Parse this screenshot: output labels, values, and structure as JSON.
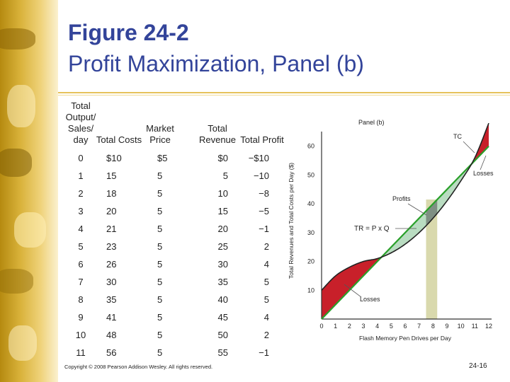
{
  "slide": {
    "title_line1": "Figure 24-2",
    "title_line2": "Profit Maximization, Panel (b)",
    "copyright": "Copyright © 2008 Pearson Addison Wesley. All rights reserved.",
    "page_number": "24-16"
  },
  "table": {
    "headers": [
      "Total Output/ Sales/ day",
      "Total Costs",
      "Market Price",
      "Total Revenue",
      "Total Profit"
    ],
    "rows": [
      [
        "0",
        "$10",
        "$5",
        "$0",
        "−$10"
      ],
      [
        "1",
        "15",
        "5",
        "5",
        "−10"
      ],
      [
        "2",
        "18",
        "5",
        "10",
        "−8"
      ],
      [
        "3",
        "20",
        "5",
        "15",
        "−5"
      ],
      [
        "4",
        "21",
        "5",
        "20",
        "−1"
      ],
      [
        "5",
        "23",
        "5",
        "25",
        "2"
      ],
      [
        "6",
        "26",
        "5",
        "30",
        "4"
      ],
      [
        "7",
        "30",
        "5",
        "35",
        "5"
      ],
      [
        "8",
        "35",
        "5",
        "40",
        "5"
      ],
      [
        "9",
        "41",
        "5",
        "45",
        "4"
      ],
      [
        "10",
        "48",
        "5",
        "50",
        "2"
      ],
      [
        "11",
        "56",
        "5",
        "55",
        "−1"
      ]
    ]
  },
  "chart_data": {
    "type": "line",
    "title": "Panel (b)",
    "xlabel": "Flash Memory Pen Drives per Day",
    "ylabel": "Total Revenues and Total Costs per Day ($)",
    "xlim": [
      0,
      12
    ],
    "ylim": [
      0,
      70
    ],
    "xticks": [
      "0",
      "1",
      "2",
      "3",
      "4",
      "5",
      "6",
      "7",
      "8",
      "9",
      "10",
      "11",
      "12"
    ],
    "yticks": [
      "10",
      "20",
      "30",
      "40",
      "50",
      "60"
    ],
    "series": [
      {
        "name": "TC",
        "x": [
          0,
          1,
          2,
          3,
          4,
          5,
          6,
          7,
          8,
          9,
          10,
          11,
          12
        ],
        "y": [
          10,
          15,
          18,
          20,
          21,
          23,
          26,
          30,
          35,
          41,
          48,
          56,
          68
        ]
      },
      {
        "name": "TR = P x Q",
        "x": [
          0,
          12
        ],
        "y": [
          0,
          60
        ]
      }
    ],
    "annotations": [
      "TC",
      "TR = P x Q",
      "Profits",
      "Losses",
      "Losses"
    ],
    "highlight_x": [
      7.5,
      8.3
    ],
    "colors": {
      "tc": "#222222",
      "tr": "#2aa02a",
      "loss": "#c8202a",
      "profit": "#b9dcc1",
      "band": "#d9d9ad",
      "band_profit": "#7f8f83"
    }
  }
}
